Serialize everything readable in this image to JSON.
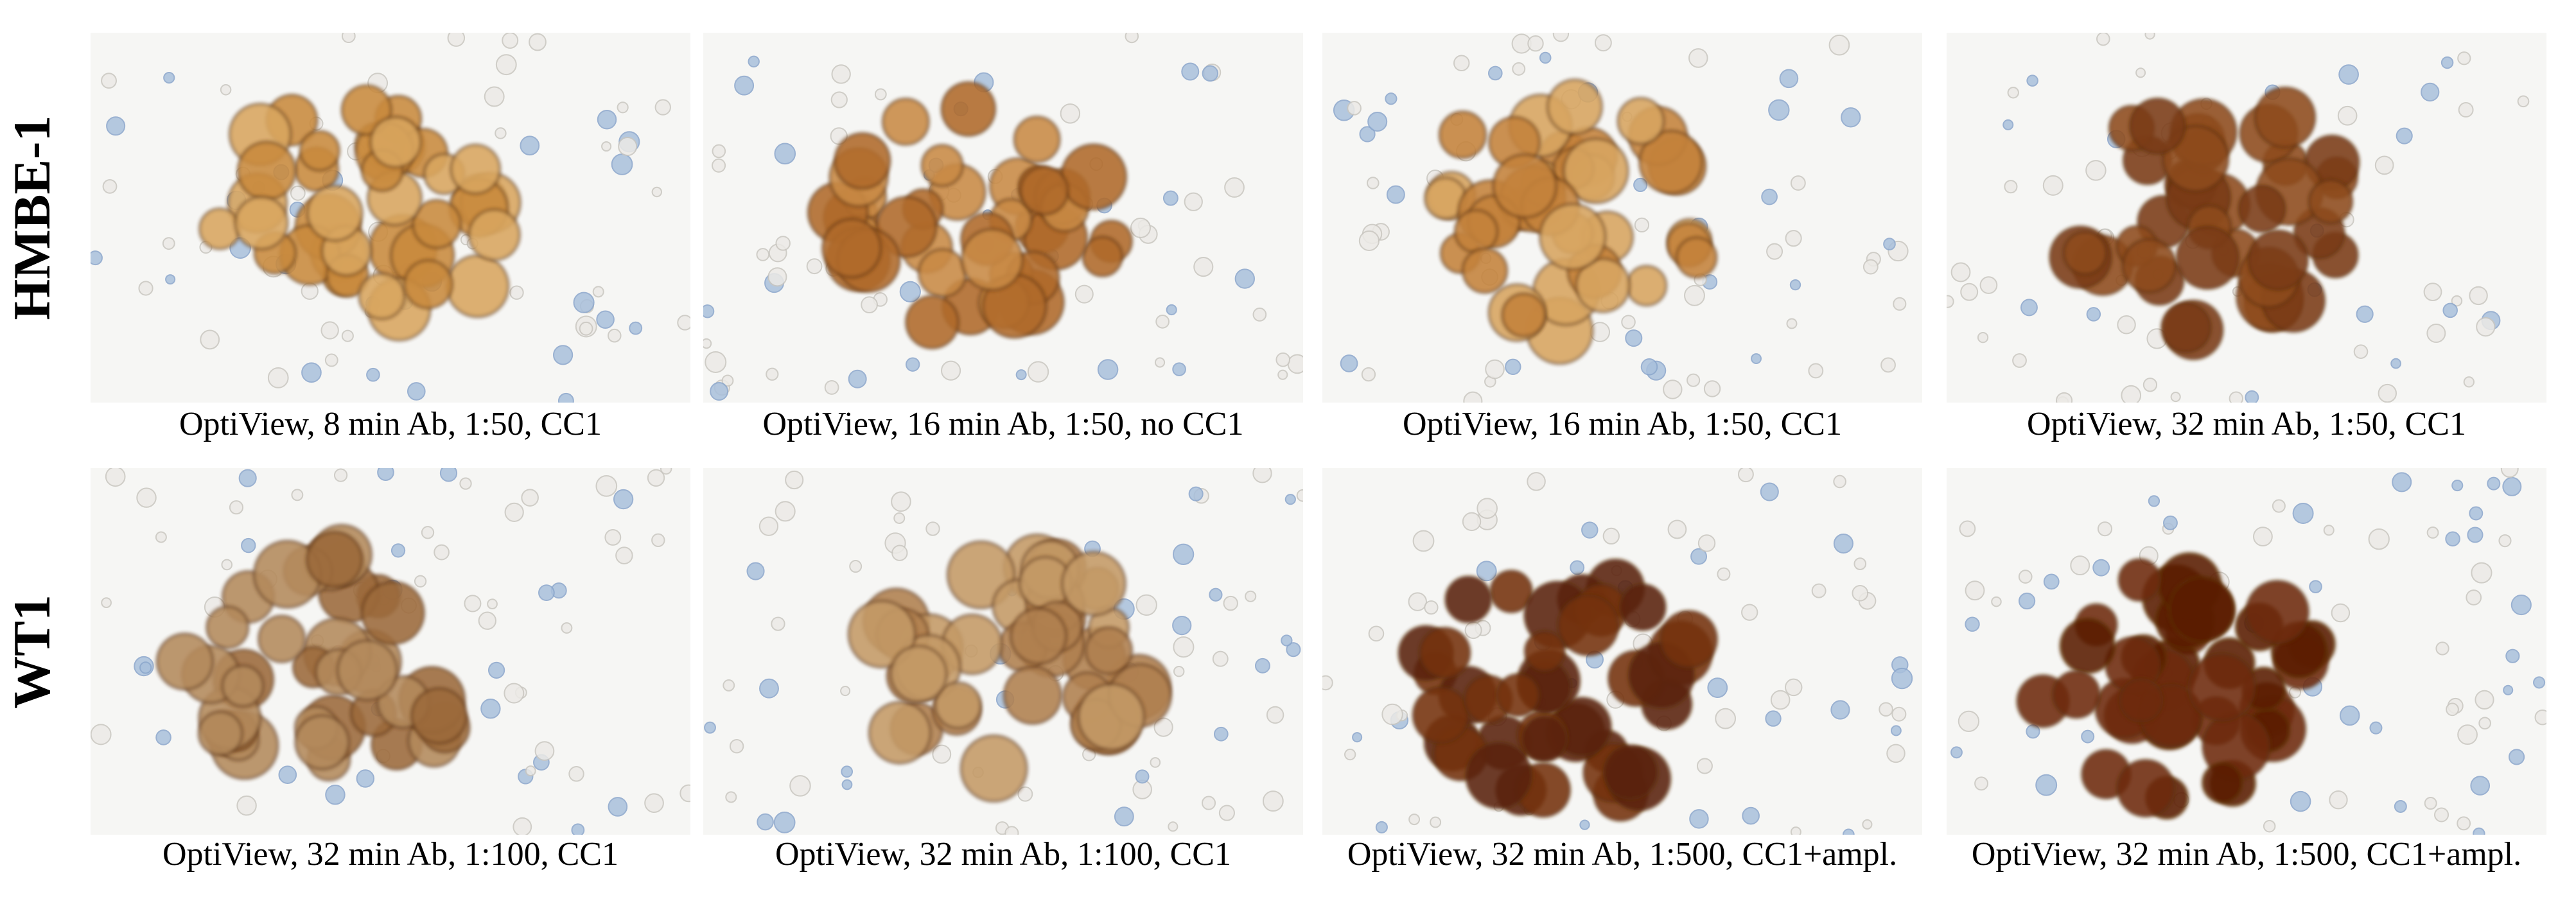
{
  "rows": [
    {
      "label": "HMBE-1",
      "panels": [
        {
          "caption": "OptiView, 8 min Ab, 1:50, CC1"
        },
        {
          "caption": "OptiView, 16 min Ab, 1:50, no CC1"
        },
        {
          "caption": "OptiView, 16 min Ab, 1:50, CC1"
        },
        {
          "caption": "OptiView, 32 min Ab, 1:50, CC1"
        }
      ]
    },
    {
      "label": "WT1",
      "panels": [
        {
          "caption": "OptiView, 32 min Ab, 1:100, CC1"
        },
        {
          "caption": "OptiView, 32 min Ab, 1:100, CC1"
        },
        {
          "caption": "OptiView, 32 min Ab, 1:500, CC1+ampl."
        },
        {
          "caption": "OptiView, 32 min Ab, 1:500, CC1+ampl."
        }
      ]
    }
  ]
}
